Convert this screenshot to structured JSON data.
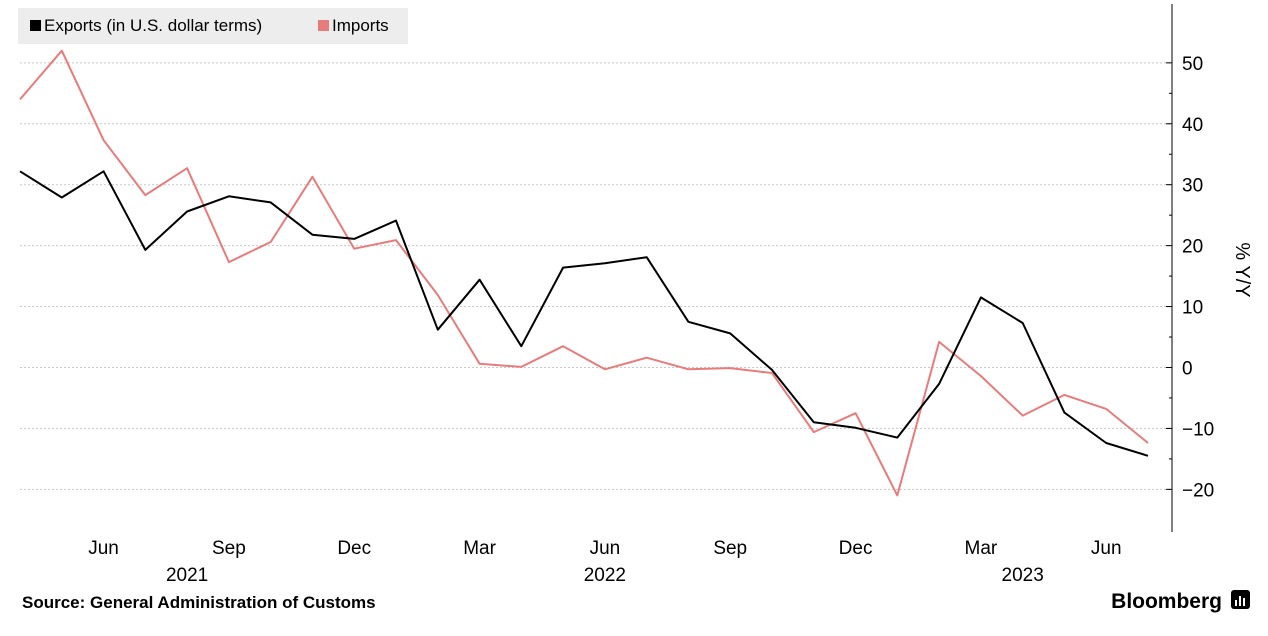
{
  "chart_data": {
    "type": "line",
    "ylabel": "% Y/Y",
    "ylim": [
      -27,
      59
    ],
    "yticks": [
      50,
      40,
      30,
      20,
      10,
      0,
      -10,
      -20
    ],
    "x_tick_labels": [
      {
        "label": "Jun",
        "index": 2
      },
      {
        "label": "Sep",
        "index": 5
      },
      {
        "label": "Dec",
        "index": 8
      },
      {
        "label": "Mar",
        "index": 11
      },
      {
        "label": "Jun",
        "index": 14
      },
      {
        "label": "Sep",
        "index": 17
      },
      {
        "label": "Dec",
        "index": 20
      },
      {
        "label": "Mar",
        "index": 23
      },
      {
        "label": "Jun",
        "index": 26
      }
    ],
    "year_labels": [
      {
        "label": "2021",
        "index": 4
      },
      {
        "label": "2022",
        "index": 14
      },
      {
        "label": "2023",
        "index": 24
      }
    ],
    "x": [
      "2021-04",
      "2021-05",
      "2021-06",
      "2021-07",
      "2021-08",
      "2021-09",
      "2021-10",
      "2021-11",
      "2021-12",
      "2022-01",
      "2022-02",
      "2022-03",
      "2022-04",
      "2022-05",
      "2022-06",
      "2022-07",
      "2022-08",
      "2022-09",
      "2022-10",
      "2022-11",
      "2022-12",
      "2023-01",
      "2023-02",
      "2023-03",
      "2023-04",
      "2023-05",
      "2023-06",
      "2023-07"
    ],
    "series": [
      {
        "name": "Exports (in U.S. dollar terms)",
        "color": "#000000",
        "values": [
          32.2,
          27.9,
          32.2,
          19.3,
          25.6,
          28.1,
          27.1,
          21.8,
          21.1,
          24.1,
          6.2,
          14.4,
          3.5,
          16.4,
          17.1,
          18.1,
          7.5,
          5.6,
          -0.4,
          -9.0,
          -9.9,
          -11.5,
          -2.7,
          11.5,
          7.3,
          -7.4,
          -12.4,
          -14.5
        ]
      },
      {
        "name": "Imports",
        "color": "#e87b7b",
        "values": [
          44.0,
          52.0,
          37.3,
          28.3,
          32.7,
          17.3,
          20.6,
          31.3,
          19.5,
          20.9,
          11.9,
          0.6,
          0.1,
          3.5,
          -0.3,
          1.6,
          -0.3,
          -0.1,
          -0.9,
          -10.6,
          -7.5,
          -21.0,
          4.2,
          -1.4,
          -7.9,
          -4.5,
          -6.8,
          -12.4
        ]
      }
    ]
  },
  "source_text": "Source: General Administration of Customs",
  "brand_text": "Bloomberg"
}
